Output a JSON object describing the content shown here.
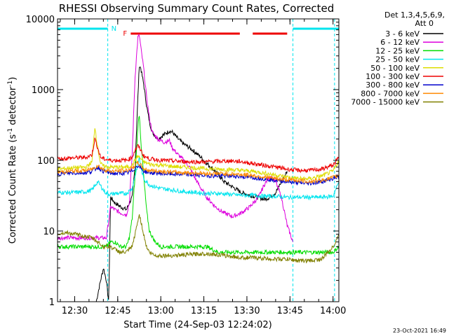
{
  "chart_data": {
    "type": "line",
    "title": "RHESSI Observing Summary Count Rates, Corrected",
    "xlabel": "Start Time (24-Sep-03 12:24:02)",
    "ylabel_main": "Corrected Count Rate (s",
    "ylabel_sup1": "-1",
    "ylabel_mid": " detector",
    "ylabel_sup2": "-1",
    "ylabel_end": ")",
    "yscale": "log",
    "ylim": [
      1,
      10000
    ],
    "xlim_minutes": [
      0,
      98
    ],
    "xticks": [
      {
        "label": "12:30",
        "m": 5.97
      },
      {
        "label": "12:45",
        "m": 20.97
      },
      {
        "label": "13:00",
        "m": 35.97
      },
      {
        "label": "13:15",
        "m": 50.97
      },
      {
        "label": "13:30",
        "m": 65.97
      },
      {
        "label": "13:45",
        "m": 80.97
      },
      {
        "label": "14:00",
        "m": 95.97
      }
    ],
    "yticks": [
      {
        "label": "1",
        "v": 1
      },
      {
        "label": "10",
        "v": 10
      },
      {
        "label": "100",
        "v": 100
      },
      {
        "label": "1000",
        "v": 1000
      },
      {
        "label": "10000",
        "v": 10000
      }
    ],
    "legend_header_1": "Det 1,3,4,5,6,9,",
    "legend_header_2": "Att 0",
    "legend_position": "outside-right",
    "flags": {
      "saa_label": "N",
      "flare_label": "F",
      "night_color": "#00e5ee",
      "flare_color": "#ee0000",
      "night_bars": [
        [
          0,
          17.5
        ],
        [
          82,
          98
        ]
      ],
      "flare_bars": [
        [
          25.5,
          63.5
        ],
        [
          68,
          80
        ]
      ],
      "vlines": [
        17.5,
        82,
        96.5
      ]
    },
    "series": [
      {
        "name": "3 - 6 keV",
        "color": "#000000",
        "x": [
          13.5,
          15,
          16,
          17,
          17.8,
          18.5,
          20,
          22,
          24,
          25,
          26,
          27,
          28,
          28.5,
          29,
          30,
          31,
          32,
          33,
          35,
          37,
          39,
          40,
          42,
          44,
          46,
          48,
          50,
          52,
          55,
          58,
          61,
          64,
          67,
          70,
          72,
          74,
          76,
          78,
          80
        ],
        "y": [
          1,
          2,
          3,
          2,
          1,
          30,
          25,
          22,
          20,
          25,
          30,
          80,
          800,
          2200,
          2000,
          1200,
          600,
          350,
          250,
          200,
          230,
          260,
          250,
          200,
          170,
          150,
          130,
          110,
          90,
          70,
          50,
          42,
          35,
          32,
          30,
          28,
          30,
          35,
          50,
          70
        ]
      },
      {
        "name": "6 - 12 keV",
        "color": "#dd00dd",
        "x": [
          0,
          5,
          10,
          13,
          15,
          17,
          18.5,
          20,
          22,
          24,
          25,
          26,
          27,
          28,
          28.5,
          29,
          30,
          31,
          32,
          33,
          35,
          37,
          39,
          40,
          42,
          44,
          46,
          48,
          50,
          52,
          55,
          58,
          61,
          64,
          67,
          70,
          72,
          74,
          76,
          78,
          80,
          82
        ],
        "y": [
          8,
          8,
          8,
          8,
          8,
          8,
          22,
          20,
          18,
          17,
          25,
          120,
          1500,
          5500,
          5800,
          4000,
          2000,
          800,
          400,
          250,
          200,
          180,
          190,
          150,
          120,
          100,
          80,
          55,
          40,
          30,
          22,
          18,
          16,
          18,
          22,
          30,
          45,
          60,
          50,
          30,
          12,
          7
        ]
      },
      {
        "name": "12 - 25 keV",
        "color": "#00dd00",
        "x": [
          0,
          5,
          10,
          15,
          17,
          18.5,
          20,
          22,
          24,
          25,
          26,
          27,
          28,
          28.5,
          29,
          30,
          31,
          32,
          34,
          36,
          40,
          44,
          48,
          52,
          56,
          60,
          64,
          68,
          72,
          76,
          80,
          84,
          88,
          92,
          96,
          98
        ],
        "y": [
          6,
          6,
          6,
          6,
          6,
          7,
          7,
          6,
          6,
          8,
          15,
          60,
          300,
          450,
          200,
          60,
          20,
          10,
          7,
          6,
          6,
          6,
          6,
          6,
          5,
          5,
          5,
          5,
          5,
          5,
          5,
          5,
          5,
          5,
          5,
          6
        ]
      },
      {
        "name": "25 - 50 keV",
        "color": "#00e5ee",
        "x": [
          0,
          5,
          10,
          12,
          14,
          16,
          17,
          18.5,
          20,
          24,
          26,
          27,
          28,
          28.5,
          29,
          30,
          32,
          34,
          36,
          40,
          44,
          48,
          52,
          56,
          60,
          64,
          68,
          72,
          76,
          80,
          84,
          88,
          92,
          96,
          98
        ],
        "y": [
          35,
          35,
          36,
          38,
          50,
          38,
          34,
          33,
          34,
          34,
          40,
          60,
          90,
          110,
          80,
          55,
          45,
          42,
          40,
          38,
          36,
          35,
          34,
          34,
          33,
          32,
          32,
          31,
          31,
          30,
          30,
          30,
          30,
          31,
          50
        ]
      },
      {
        "name": "50 - 100 keV",
        "color": "#dddd00",
        "x": [
          0,
          5,
          10,
          12,
          13,
          14,
          15,
          16,
          18.5,
          20,
          24,
          26,
          27,
          28,
          29,
          30,
          32,
          36,
          40,
          44,
          48,
          52,
          56,
          60,
          64,
          68,
          72,
          76,
          80,
          84,
          88,
          92,
          96,
          98
        ],
        "y": [
          75,
          78,
          80,
          95,
          300,
          150,
          90,
          82,
          80,
          80,
          80,
          85,
          100,
          115,
          105,
          95,
          88,
          85,
          82,
          80,
          78,
          76,
          75,
          74,
          72,
          70,
          66,
          62,
          58,
          55,
          55,
          60,
          70,
          100
        ]
      },
      {
        "name": "100 - 300 keV",
        "color": "#ee0000",
        "x": [
          0,
          5,
          10,
          12,
          13,
          14,
          15,
          16,
          18.5,
          20,
          24,
          26,
          27,
          28,
          29,
          30,
          32,
          36,
          40,
          44,
          48,
          52,
          56,
          60,
          64,
          68,
          72,
          76,
          80,
          84,
          88,
          92,
          96,
          98
        ],
        "y": [
          105,
          108,
          110,
          120,
          200,
          150,
          110,
          105,
          100,
          100,
          100,
          110,
          140,
          160,
          140,
          115,
          105,
          100,
          98,
          96,
          95,
          95,
          97,
          98,
          96,
          90,
          85,
          80,
          75,
          72,
          72,
          75,
          85,
          110
        ]
      },
      {
        "name": "300 - 800 keV",
        "color": "#0000cc",
        "x": [
          0,
          5,
          10,
          12,
          14,
          16,
          18.5,
          20,
          24,
          26,
          27,
          28,
          29,
          30,
          32,
          36,
          40,
          44,
          48,
          52,
          56,
          60,
          64,
          68,
          72,
          76,
          80,
          84,
          88,
          92,
          96,
          98
        ],
        "y": [
          65,
          66,
          67,
          70,
          80,
          70,
          66,
          65,
          66,
          70,
          78,
          85,
          78,
          70,
          67,
          65,
          64,
          63,
          62,
          61,
          60,
          60,
          59,
          57,
          55,
          52,
          50,
          48,
          47,
          50,
          55,
          60
        ]
      },
      {
        "name": "800 - 7000 keV",
        "color": "#ff8800",
        "x": [
          0,
          5,
          10,
          12,
          14,
          16,
          18.5,
          20,
          24,
          26,
          27,
          28,
          29,
          30,
          32,
          36,
          40,
          44,
          48,
          52,
          56,
          60,
          64,
          68,
          72,
          76,
          80,
          84,
          88,
          92,
          96,
          98
        ],
        "y": [
          68,
          70,
          72,
          75,
          85,
          74,
          70,
          70,
          72,
          78,
          85,
          92,
          85,
          76,
          72,
          70,
          68,
          67,
          66,
          65,
          65,
          64,
          63,
          61,
          58,
          55,
          53,
          52,
          50,
          52,
          57,
          62
        ]
      },
      {
        "name": "7000 - 15000 keV",
        "color": "#808000",
        "x": [
          0,
          3,
          6,
          9,
          12,
          14,
          16,
          18.5,
          20,
          22,
          24,
          26,
          27,
          28,
          28.5,
          29,
          30,
          31,
          32,
          34,
          36,
          40,
          44,
          48,
          52,
          56,
          60,
          64,
          68,
          72,
          76,
          80,
          84,
          88,
          92,
          96,
          98
        ],
        "y": [
          9,
          9.5,
          9,
          8.5,
          8,
          7,
          6,
          6,
          5.5,
          5,
          5,
          6,
          9,
          14,
          17,
          14,
          9,
          6,
          5,
          4.5,
          4.5,
          4.5,
          4.6,
          4.7,
          4.8,
          4.6,
          4.4,
          4.2,
          4.2,
          4.1,
          4.0,
          4.0,
          3.8,
          3.8,
          4,
          6,
          9
        ]
      }
    ]
  },
  "footer_timestamp": "23-Oct-2021 16:49"
}
